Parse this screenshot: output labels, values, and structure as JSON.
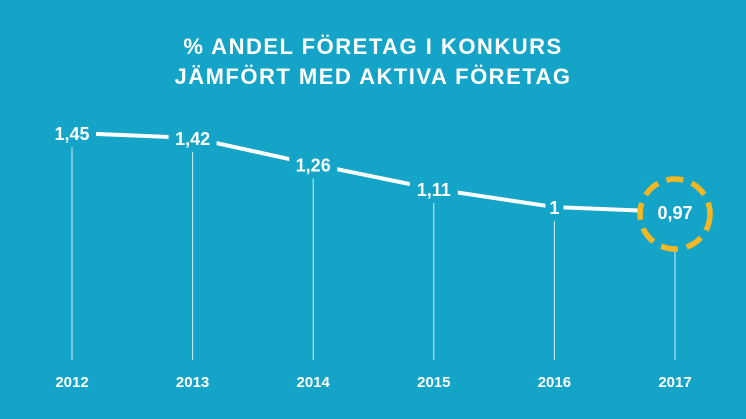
{
  "chart_data": {
    "type": "line",
    "title_line1": "% ANDEL FÖRETAG I KONKURS",
    "title_line2": "JÄMFÖRT MED AKTIVA FÖRETAG",
    "categories": [
      "2012",
      "2013",
      "2014",
      "2015",
      "2016",
      "2017"
    ],
    "values": [
      1.45,
      1.42,
      1.26,
      1.11,
      1,
      0.97
    ],
    "data_labels": [
      "1,45",
      "1,42",
      "1,26",
      "1,11",
      "1",
      "0,97"
    ],
    "highlight": {
      "category": "2017",
      "style": "dashed circle"
    },
    "colors": {
      "background": "#14a4c8",
      "line": "#ffffff",
      "highlight": "#f5b823"
    },
    "grid": false,
    "legend": "none"
  }
}
